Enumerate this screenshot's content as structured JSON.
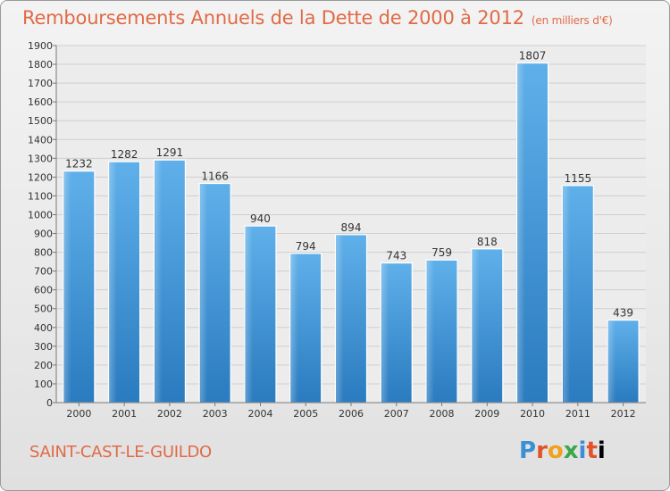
{
  "chart_data": {
    "type": "bar",
    "title": "Remboursements Annuels de la Dette de 2000 à 2012",
    "subtitle": "(en milliers d'€)",
    "categories": [
      "2000",
      "2001",
      "2002",
      "2003",
      "2004",
      "2005",
      "2006",
      "2007",
      "2008",
      "2009",
      "2010",
      "2011",
      "2012"
    ],
    "values": [
      1232,
      1282,
      1291,
      1166,
      940,
      794,
      894,
      743,
      759,
      818,
      1807,
      1155,
      439
    ],
    "ylim": [
      0,
      1900
    ],
    "yticks": [
      0,
      100,
      200,
      300,
      400,
      500,
      600,
      700,
      800,
      900,
      1000,
      1100,
      1200,
      1300,
      1400,
      1500,
      1600,
      1700,
      1800,
      1900
    ],
    "xlabel": "",
    "ylabel": "",
    "grid": true,
    "bar_color": "#4a9fe0"
  },
  "footer": {
    "commune": "SAINT-CAST-LE-GUILDO",
    "logo_letters": [
      "P",
      "r",
      "o",
      "x",
      "i",
      "t",
      "i"
    ]
  },
  "colors": {
    "title": "#e06a45",
    "bar": "#4a9fe0",
    "bar_dark": "#2a7fc4"
  }
}
